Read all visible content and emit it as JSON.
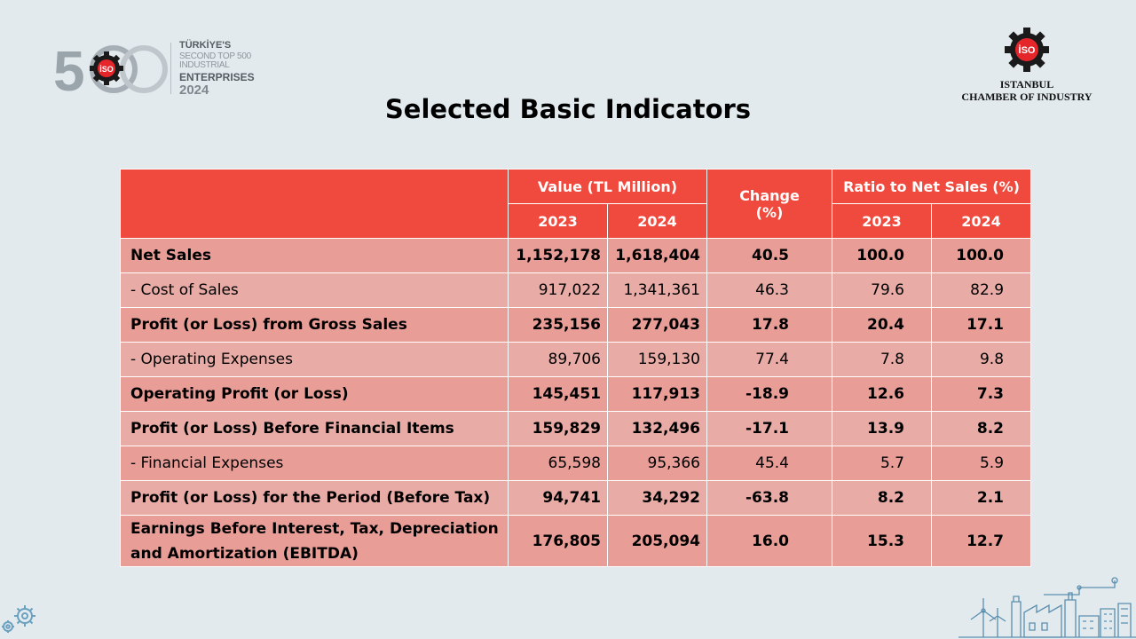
{
  "logo_left": {
    "number": "500",
    "badge": "İSO",
    "line1": "TÜRKİYE'S",
    "line2": "SECOND TOP 500 INDUSTRIAL",
    "line3": "ENTERPRISES",
    "line4": "2024"
  },
  "logo_right": {
    "badge": "İSO",
    "org_line1": "ISTANBUL",
    "org_line2": "CHAMBER OF INDUSTRY"
  },
  "title": "Selected Basic Indicators",
  "table": {
    "header": {
      "value": "Value (TL Million)",
      "change": "Change (%)",
      "ratio": "Ratio to Net Sales (%)",
      "year_a": "2023",
      "year_b": "2024"
    },
    "rows": [
      {
        "label": "Net Sales",
        "v2023": "1,152,178",
        "v2024": "1,618,404",
        "change": "40.5",
        "r2023": "100.0",
        "r2024": "100.0",
        "bold": true
      },
      {
        "label": "- Cost of Sales",
        "v2023": "917,022",
        "v2024": "1,341,361",
        "change": "46.3",
        "r2023": "79.6",
        "r2024": "82.9",
        "bold": false
      },
      {
        "label": "Profit (or Loss) from Gross Sales",
        "v2023": "235,156",
        "v2024": "277,043",
        "change": "17.8",
        "r2023": "20.4",
        "r2024": "17.1",
        "bold": true
      },
      {
        "label": "- Operating Expenses",
        "v2023": "89,706",
        "v2024": "159,130",
        "change": "77.4",
        "r2023": "7.8",
        "r2024": "9.8",
        "bold": false
      },
      {
        "label": "Operating Profit (or Loss)",
        "v2023": "145,451",
        "v2024": "117,913",
        "change": "-18.9",
        "r2023": "12.6",
        "r2024": "7.3",
        "bold": true
      },
      {
        "label": "Profit (or Loss) Before Financial Items",
        "v2023": "159,829",
        "v2024": "132,496",
        "change": "-17.1",
        "r2023": "13.9",
        "r2024": "8.2",
        "bold": true
      },
      {
        "label": "- Financial Expenses",
        "v2023": "65,598",
        "v2024": "95,366",
        "change": "45.4",
        "r2023": "5.7",
        "r2024": "5.9",
        "bold": false
      },
      {
        "label": "Profit (or Loss) for the Period (Before Tax)",
        "v2023": "94,741",
        "v2024": "34,292",
        "change": "-63.8",
        "r2023": "8.2",
        "r2024": "2.1",
        "bold": true
      },
      {
        "label": "Earnings Before Interest, Tax, Depreciation and Amortization (EBITDA)",
        "v2023": "176,805",
        "v2024": "205,094",
        "change": "16.0",
        "r2023": "15.3",
        "r2024": "12.7",
        "bold": true
      }
    ]
  },
  "colors": {
    "header": "#f04a3e",
    "row_dark": "#e89d97",
    "row_light": "#e8aba6",
    "background": "#e2eaee"
  },
  "icons": [
    "gear-icon",
    "factory-illustration"
  ]
}
